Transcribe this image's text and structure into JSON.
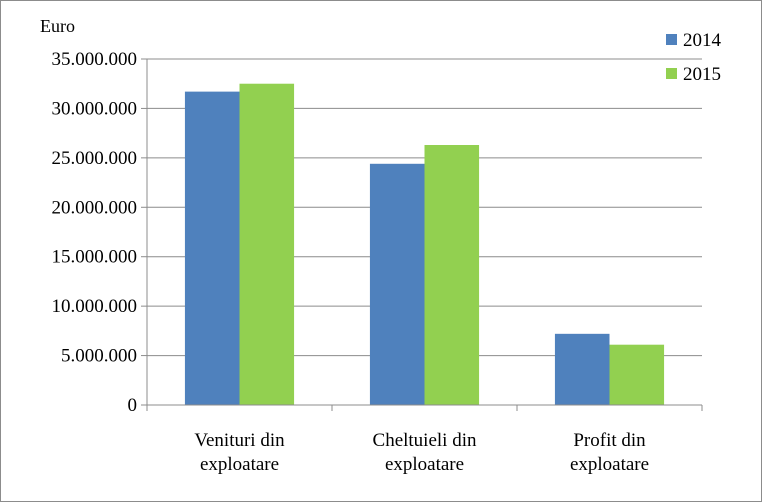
{
  "chart_data": {
    "type": "bar",
    "ylabel": "Euro",
    "categories": [
      [
        "Venituri din",
        "exploatare"
      ],
      [
        "Cheltuieli din",
        "exploatare"
      ],
      [
        "Profit din",
        "exploatare"
      ]
    ],
    "series": [
      {
        "name": "2014",
        "color": "#4f81bd",
        "values": [
          31700000,
          24400000,
          7200000
        ]
      },
      {
        "name": "2015",
        "color": "#92d050",
        "values": [
          32500000,
          26300000,
          6100000
        ]
      }
    ],
    "ylim": [
      0,
      35000000
    ],
    "yticks": [
      0,
      5000000,
      10000000,
      15000000,
      20000000,
      25000000,
      30000000,
      35000000
    ],
    "ytick_labels": [
      "0",
      "5.000.000",
      "10.000.000",
      "15.000.000",
      "20.000.000",
      "25.000.000",
      "30.000.000",
      "35.000.000"
    ],
    "grid": true,
    "legend_position": "top-right"
  }
}
